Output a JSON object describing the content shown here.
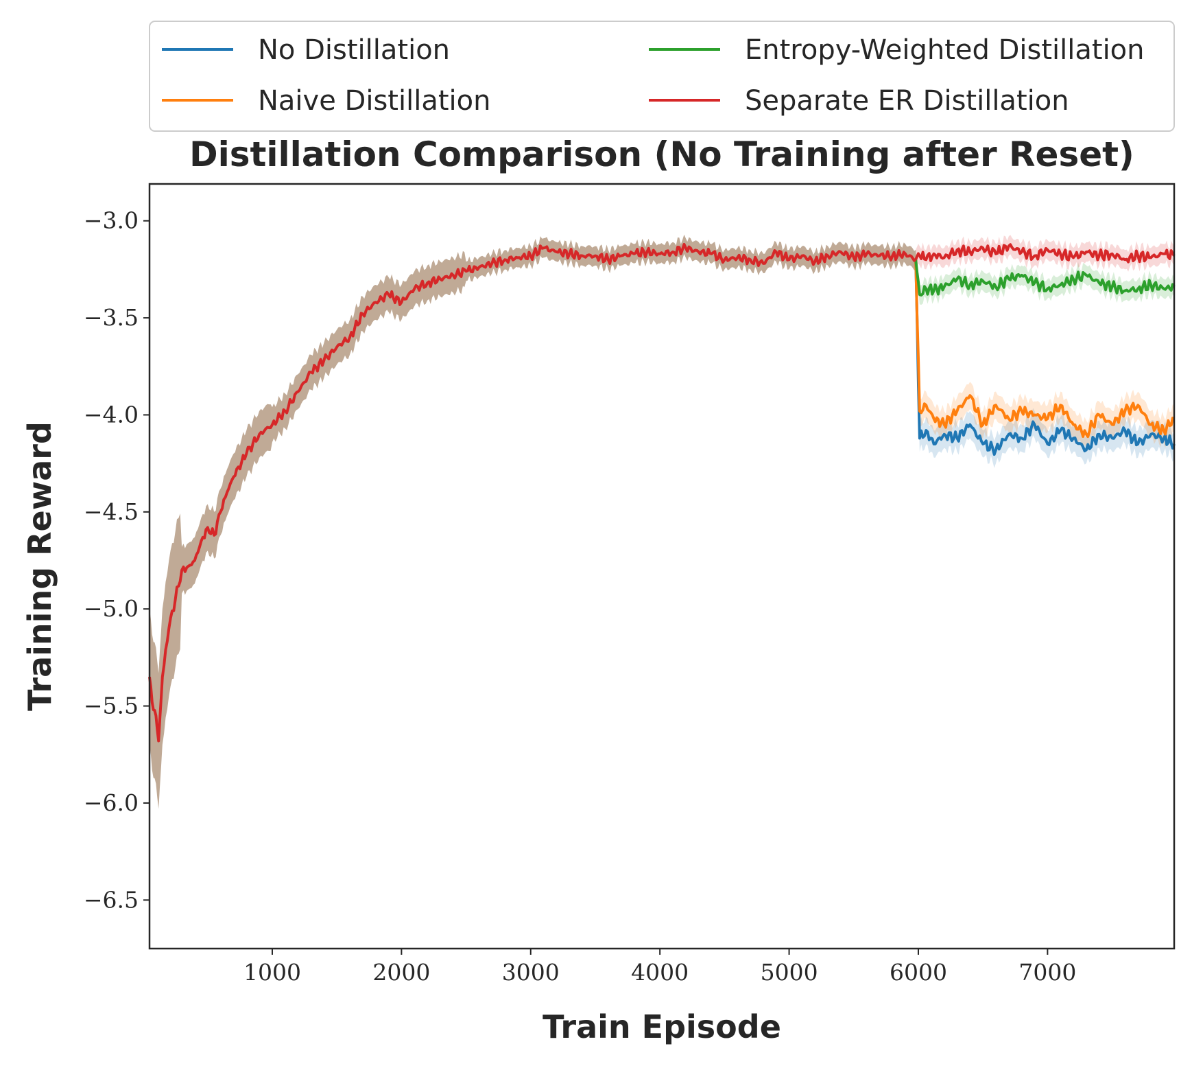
{
  "chart_data": {
    "type": "line",
    "title": "Distillation Comparison (No Training after Reset)",
    "xlabel": "Train Episode",
    "ylabel": "Training Reward",
    "xlim": [
      50,
      7980
    ],
    "ylim": [
      -6.75,
      -2.81
    ],
    "xticks": [
      1000,
      2000,
      3000,
      4000,
      5000,
      6000,
      7000
    ],
    "yticks": [
      -6.5,
      -6.0,
      -5.5,
      -5.0,
      -4.5,
      -4.0,
      -3.5,
      -3.0
    ],
    "xtick_labels": [
      "1000",
      "2000",
      "3000",
      "4000",
      "5000",
      "6000",
      "7000"
    ],
    "ytick_labels": [
      "−6.5",
      "−6.0",
      "−5.5",
      "−5.0",
      "−4.5",
      "−4.0",
      "−3.5",
      "−3.0"
    ],
    "grid": false,
    "legend": {
      "placement": "top",
      "columns": 2
    },
    "shared_prefix": {
      "note_color": "#b59b84",
      "x": [
        50,
        80,
        100,
        120,
        150,
        200,
        250,
        300,
        350,
        400,
        450,
        500,
        550,
        600,
        650,
        700,
        800,
        900,
        1000,
        1100,
        1200,
        1300,
        1400,
        1500,
        1600,
        1700,
        1800,
        1900,
        2000,
        2100,
        2200,
        2300,
        2400,
        2500,
        2600,
        2700,
        2800,
        2900,
        3000,
        3100,
        3200,
        3300,
        3400,
        3500,
        3600,
        3700,
        3800,
        3900,
        4000,
        4100,
        4200,
        4300,
        4400,
        4500,
        4600,
        4700,
        4800,
        4900,
        5000,
        5100,
        5200,
        5300,
        5400,
        5500,
        5600,
        5700,
        5800,
        5900,
        5980
      ],
      "y": [
        -5.35,
        -5.52,
        -5.55,
        -5.68,
        -5.35,
        -5.1,
        -4.95,
        -4.8,
        -4.78,
        -4.75,
        -4.65,
        -4.58,
        -4.62,
        -4.5,
        -4.4,
        -4.32,
        -4.2,
        -4.1,
        -4.05,
        -3.98,
        -3.88,
        -3.78,
        -3.72,
        -3.65,
        -3.6,
        -3.48,
        -3.42,
        -3.38,
        -3.42,
        -3.35,
        -3.32,
        -3.3,
        -3.28,
        -3.26,
        -3.24,
        -3.22,
        -3.2,
        -3.19,
        -3.18,
        -3.14,
        -3.16,
        -3.17,
        -3.18,
        -3.18,
        -3.2,
        -3.18,
        -3.17,
        -3.16,
        -3.17,
        -3.16,
        -3.14,
        -3.16,
        -3.17,
        -3.2,
        -3.19,
        -3.2,
        -3.22,
        -3.16,
        -3.2,
        -3.18,
        -3.21,
        -3.18,
        -3.16,
        -3.19,
        -3.17,
        -3.18,
        -3.18,
        -3.17,
        -3.2
      ]
    },
    "series": [
      {
        "name": "No Distillation",
        "color": "#1f77b4",
        "x": [
          5980,
          6010,
          6060,
          6120,
          6200,
          6300,
          6400,
          6500,
          6600,
          6700,
          6800,
          6900,
          7000,
          7100,
          7200,
          7300,
          7400,
          7500,
          7600,
          7700,
          7800,
          7900,
          7980
        ],
        "y": [
          -3.2,
          -4.12,
          -4.08,
          -4.15,
          -4.1,
          -4.12,
          -4.05,
          -4.15,
          -4.18,
          -4.1,
          -4.12,
          -4.05,
          -4.15,
          -4.08,
          -4.12,
          -4.18,
          -4.1,
          -4.12,
          -4.08,
          -4.15,
          -4.1,
          -4.12,
          -4.15
        ]
      },
      {
        "name": "Naive Distillation",
        "color": "#ff7f0e",
        "x": [
          5980,
          6010,
          6060,
          6120,
          6200,
          6300,
          6400,
          6500,
          6600,
          6700,
          6800,
          6900,
          7000,
          7100,
          7200,
          7300,
          7400,
          7500,
          7600,
          7700,
          7800,
          7900,
          7980
        ],
        "y": [
          -3.2,
          -3.98,
          -3.95,
          -4.02,
          -4.05,
          -3.98,
          -3.9,
          -4.05,
          -3.95,
          -4.02,
          -3.98,
          -4.0,
          -4.02,
          -3.95,
          -4.05,
          -4.1,
          -4.0,
          -4.05,
          -3.98,
          -3.95,
          -4.05,
          -4.08,
          -4.02
        ]
      },
      {
        "name": "Entropy-Weighted Distillation",
        "color": "#2ca02c",
        "x": [
          5980,
          6010,
          6060,
          6120,
          6200,
          6300,
          6400,
          6500,
          6600,
          6700,
          6800,
          6900,
          7000,
          7100,
          7200,
          7300,
          7400,
          7500,
          7600,
          7700,
          7800,
          7900,
          7980
        ],
        "y": [
          -3.2,
          -3.38,
          -3.35,
          -3.36,
          -3.34,
          -3.3,
          -3.33,
          -3.31,
          -3.34,
          -3.3,
          -3.28,
          -3.32,
          -3.35,
          -3.33,
          -3.3,
          -3.28,
          -3.32,
          -3.34,
          -3.36,
          -3.35,
          -3.33,
          -3.35,
          -3.34
        ]
      },
      {
        "name": "Separate ER Distillation",
        "color": "#d62728",
        "x": [
          5980,
          6010,
          6060,
          6120,
          6200,
          6300,
          6400,
          6500,
          6600,
          6700,
          6800,
          6900,
          7000,
          7100,
          7200,
          7300,
          7400,
          7500,
          7600,
          7700,
          7800,
          7900,
          7980
        ],
        "y": [
          -3.2,
          -3.18,
          -3.2,
          -3.17,
          -3.19,
          -3.15,
          -3.16,
          -3.14,
          -3.17,
          -3.13,
          -3.16,
          -3.18,
          -3.15,
          -3.17,
          -3.19,
          -3.16,
          -3.18,
          -3.17,
          -3.2,
          -3.18,
          -3.19,
          -3.17,
          -3.18
        ]
      }
    ]
  }
}
